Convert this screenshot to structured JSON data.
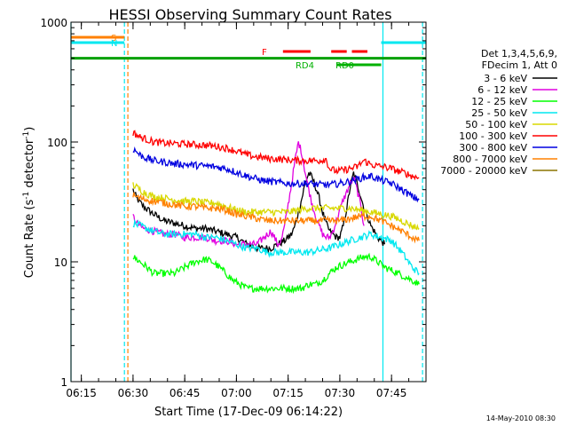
{
  "chart_data": {
    "type": "line",
    "title": "HESSI Observing Summary Count Rates",
    "xlabel": "Start Time (17-Dec-09 06:14:22)",
    "ylabel": "Count Rate (s⁻¹ detector⁻¹)",
    "ylabel_base": "Count Rate (s",
    "ylabel_mid": " detector",
    "ylabel_end": ")",
    "ylabel_exp": "-1",
    "y_scale": "log",
    "xlim_minutes": [
      -3,
      100
    ],
    "ylim": [
      1,
      1000
    ],
    "x_ticks": [
      {
        "m": 0,
        "label": "06:15"
      },
      {
        "m": 15,
        "label": "06:30"
      },
      {
        "m": 30,
        "label": "06:45"
      },
      {
        "m": 45,
        "label": "07:00"
      },
      {
        "m": 60,
        "label": "07:15"
      },
      {
        "m": 75,
        "label": "07:30"
      },
      {
        "m": 90,
        "label": "07:45"
      }
    ],
    "y_ticks": [
      {
        "v": 1,
        "label": "1"
      },
      {
        "v": 10,
        "label": "10"
      },
      {
        "v": 100,
        "label": "100"
      },
      {
        "v": 1000,
        "label": "1000"
      }
    ],
    "legend": {
      "position": "right",
      "header": [
        "Det 1,3,4,5,6,9,",
        "FDecim 1, Att 0"
      ]
    },
    "series": [
      {
        "name": "3 - 6 keV",
        "color": "#000000",
        "t": [
          15,
          16,
          18,
          21,
          24,
          27,
          30,
          33,
          36,
          39,
          42,
          45,
          48,
          51,
          53,
          55,
          57,
          59,
          61,
          62,
          63,
          64,
          65,
          66,
          67,
          68,
          69,
          70,
          71,
          72,
          73,
          74,
          75,
          76,
          77,
          78,
          79,
          80,
          81,
          82,
          83,
          84,
          85,
          86,
          87,
          88
        ],
        "v": [
          40,
          34,
          29,
          25,
          22,
          21,
          20,
          19,
          19,
          18,
          17,
          16,
          14,
          13,
          13,
          13,
          14,
          15,
          17,
          20,
          26,
          34,
          46,
          55,
          50,
          42,
          34,
          26,
          21,
          18,
          17,
          16,
          16,
          20,
          28,
          42,
          55,
          45,
          36,
          28,
          24,
          20,
          18,
          16,
          15,
          14
        ]
      },
      {
        "name": "6 - 12 keV",
        "color": "#e000e0",
        "t": [
          15,
          16,
          18,
          21,
          24,
          27,
          30,
          33,
          36,
          39,
          42,
          45,
          48,
          51,
          53,
          55,
          56,
          57,
          58,
          59,
          60,
          61,
          62,
          63,
          64,
          65,
          66,
          67,
          68,
          69,
          70,
          71,
          72,
          73,
          74,
          75,
          76,
          77,
          78,
          79,
          80,
          81,
          82
        ],
        "v": [
          24,
          21,
          19,
          18,
          17,
          17,
          16,
          16,
          16,
          15,
          15,
          14,
          14,
          14,
          16,
          18,
          16,
          14,
          15,
          20,
          30,
          45,
          70,
          100,
          80,
          55,
          40,
          30,
          24,
          20,
          17,
          16,
          16,
          18,
          22,
          27,
          33,
          38,
          45,
          50,
          40,
          30,
          20
        ]
      },
      {
        "name": "12 - 25 keV",
        "color": "#00ff00",
        "t": [
          15,
          17,
          19,
          21,
          24,
          27,
          30,
          33,
          36,
          38,
          40,
          42,
          44,
          46,
          48,
          50,
          52,
          54,
          56,
          58,
          60,
          62,
          64,
          66,
          68,
          70,
          72,
          74,
          76,
          78,
          80,
          82,
          84,
          86,
          88,
          90,
          92,
          94,
          96,
          98
        ],
        "v": [
          11,
          10,
          9,
          8,
          8,
          8,
          9,
          10,
          10.5,
          10,
          9,
          8,
          7,
          6.5,
          6,
          6,
          6,
          6,
          6,
          6,
          6,
          6,
          6,
          6.5,
          6.5,
          7,
          8,
          9,
          9.5,
          10,
          10.5,
          11,
          11,
          10,
          9,
          8.5,
          8,
          7.5,
          7,
          6.5
        ]
      },
      {
        "name": "25 - 50 keV",
        "color": "#00e8f0",
        "t": [
          15,
          17,
          19,
          21,
          24,
          27,
          30,
          33,
          36,
          39,
          42,
          45,
          48,
          51,
          54,
          57,
          60,
          63,
          66,
          69,
          72,
          75,
          78,
          81,
          84,
          87,
          90,
          93,
          96,
          98
        ],
        "v": [
          21,
          20,
          19,
          18,
          17,
          17,
          17,
          17,
          16,
          16,
          15,
          14,
          13,
          13,
          12,
          12,
          12,
          12,
          12,
          12.5,
          13,
          14,
          15,
          16,
          17,
          16,
          15,
          12,
          9,
          8
        ]
      },
      {
        "name": "50 - 100 keV",
        "color": "#d8d800",
        "t": [
          15,
          17,
          19,
          21,
          24,
          27,
          30,
          33,
          36,
          39,
          42,
          45,
          48,
          51,
          54,
          57,
          60,
          63,
          66,
          69,
          72,
          75,
          78,
          81,
          84,
          87,
          90,
          93,
          96,
          98
        ],
        "v": [
          44,
          40,
          37,
          35,
          34,
          33,
          32,
          32,
          31,
          31,
          29,
          27,
          26,
          26,
          26,
          26,
          26,
          27,
          28,
          28,
          28,
          28,
          28,
          27,
          26,
          25,
          24,
          22,
          20,
          19
        ]
      },
      {
        "name": "100 - 300 keV",
        "color": "#ff0000",
        "t": [
          15,
          17,
          19,
          21,
          24,
          27,
          30,
          33,
          36,
          39,
          42,
          45,
          48,
          51,
          54,
          57,
          60,
          63,
          66,
          69,
          71,
          72,
          74,
          76,
          78,
          80,
          82,
          84,
          86,
          88,
          90,
          92,
          94,
          96,
          98
        ],
        "v": [
          120,
          110,
          105,
          100,
          98,
          97,
          96,
          95,
          94,
          92,
          89,
          84,
          78,
          75,
          73,
          72,
          71,
          70,
          70,
          70,
          72,
          60,
          57,
          58,
          60,
          62,
          70,
          65,
          63,
          62,
          60,
          57,
          55,
          52,
          50
        ]
      },
      {
        "name": "300 - 800 keV",
        "color": "#0000e0",
        "t": [
          15,
          17,
          19,
          21,
          24,
          27,
          30,
          33,
          36,
          39,
          42,
          45,
          48,
          51,
          54,
          57,
          60,
          63,
          66,
          69,
          72,
          75,
          78,
          81,
          84,
          87,
          90,
          93,
          96,
          98
        ],
        "v": [
          88,
          78,
          73,
          70,
          68,
          66,
          65,
          64,
          63,
          62,
          60,
          56,
          52,
          49,
          47,
          46,
          45,
          45,
          45,
          44,
          44,
          45,
          47,
          50,
          52,
          48,
          45,
          40,
          35,
          33
        ]
      },
      {
        "name": "800 - 7000 keV",
        "color": "#ff8000",
        "t": [
          15,
          17,
          19,
          21,
          24,
          27,
          30,
          33,
          36,
          39,
          42,
          45,
          48,
          51,
          54,
          57,
          60,
          63,
          66,
          69,
          72,
          75,
          78,
          81,
          84,
          87,
          90,
          93,
          96,
          98
        ],
        "v": [
          36,
          34,
          33,
          32,
          31,
          30,
          29,
          29,
          28,
          28,
          27,
          25,
          24,
          23,
          22,
          22,
          22,
          22,
          22,
          22,
          22,
          22,
          23,
          24,
          24,
          22,
          20,
          18,
          16,
          15
        ]
      },
      {
        "name": "7000 - 20000 keV",
        "color": "#8b7500",
        "t": [],
        "v": []
      }
    ],
    "flag_segments": [
      {
        "label": "S",
        "color": "#ff8000",
        "y_rel": 0.0,
        "segments": [
          [
            -3,
            12.5
          ]
        ]
      },
      {
        "label": "N",
        "color": "#00e8f0",
        "y_rel": 1.0,
        "segments": [
          [
            -3,
            12.5
          ],
          [
            87,
            100
          ]
        ]
      },
      {
        "label": "F",
        "color": "#ff0000",
        "y_rel": 2.0,
        "segments": [
          [
            58.5,
            66.5
          ],
          [
            72.5,
            77
          ],
          [
            78.5,
            83
          ]
        ]
      },
      {
        "label": "RD0",
        "color": "#00b000",
        "y_rel": 3.0,
        "segments": [
          [
            77,
            82
          ]
        ]
      },
      {
        "label": "RD4",
        "color": "#00b000",
        "y_rel": 4.0,
        "segments": [
          [
            74,
            87
          ]
        ]
      }
    ],
    "vlines": [
      {
        "m": -3,
        "color": "#00e8f0",
        "dashed": false
      },
      {
        "m": 12.5,
        "color": "#00e8f0",
        "dashed": true
      },
      {
        "m": 13.5,
        "color": "#ff8000",
        "dashed": true
      },
      {
        "m": 87.5,
        "color": "#00e8f0",
        "dashed": false
      },
      {
        "m": 99,
        "color": "#00e8f0",
        "dashed": true
      }
    ],
    "saa_line_value": 500
  },
  "footer_date": "14-May-2010 08:30"
}
